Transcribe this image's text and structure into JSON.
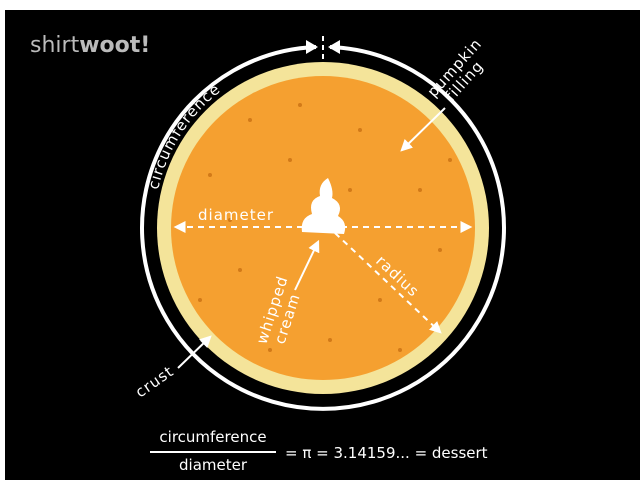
{
  "brand": {
    "prefix": "shirt",
    "name": "woot!"
  },
  "labels": {
    "circumference": "circumference",
    "pumpkin": "pumpkin",
    "filling": "filling",
    "diameter": "diameter",
    "radius": "radius",
    "whipped": "whipped",
    "cream": "cream",
    "crust": "crust"
  },
  "formula": {
    "numerator": "circumference",
    "denominator": "diameter",
    "result": "= π = 3.14159... = dessert"
  }
}
